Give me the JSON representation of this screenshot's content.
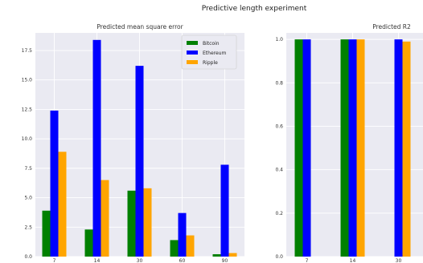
{
  "suptitle": "Predictive length experiment",
  "colors": {
    "bitcoin": "#008000",
    "ethereum": "#0000ff",
    "ripple": "#ffa500",
    "axes_bg": "#eaeaf2",
    "grid": "#ffffff"
  },
  "chart_data": [
    {
      "type": "bar",
      "title": "Predicted mean square error",
      "xlabel": "",
      "ylabel": "",
      "categories": [
        "7",
        "14",
        "30",
        "60",
        "90"
      ],
      "ylim": [
        0,
        19
      ],
      "yticks": [
        0.0,
        2.5,
        5.0,
        7.5,
        10.0,
        12.5,
        15.0,
        17.5
      ],
      "ytick_labels": [
        "0.0",
        "2.5",
        "5.0",
        "7.5",
        "10.0",
        "12.5",
        "15.0",
        "17.5"
      ],
      "grid": true,
      "legend": "top-right",
      "series": [
        {
          "name": "Bitcoin",
          "color": "#008000",
          "values": [
            3.9,
            2.3,
            5.6,
            1.4,
            0.2
          ]
        },
        {
          "name": "Ethereum",
          "color": "#0000ff",
          "values": [
            12.4,
            18.4,
            16.2,
            3.7,
            7.8
          ]
        },
        {
          "name": "Ripple",
          "color": "#ffa500",
          "values": [
            8.9,
            6.5,
            5.8,
            1.8,
            0.3
          ]
        }
      ]
    },
    {
      "type": "bar",
      "title": "Predicted R2",
      "xlabel": "",
      "ylabel": "",
      "categories": [
        "7",
        "14",
        "30",
        "60"
      ],
      "ylim": [
        0,
        1.03
      ],
      "yticks": [
        0.0,
        0.2,
        0.4,
        0.6,
        0.8,
        1.0
      ],
      "ytick_labels": [
        "0.0",
        "0.2",
        "0.4",
        "0.6",
        "0.8",
        "1.0"
      ],
      "grid": true,
      "series": [
        {
          "name": "Bitcoin",
          "color": "#008000",
          "values": [
            1.0,
            1.0,
            null,
            1.0
          ]
        },
        {
          "name": "Ethereum",
          "color": "#0000ff",
          "values": [
            1.0,
            1.0,
            1.0,
            null
          ]
        },
        {
          "name": "Ripple",
          "color": "#ffa500",
          "values": [
            null,
            1.0,
            0.99,
            null
          ]
        }
      ]
    }
  ]
}
